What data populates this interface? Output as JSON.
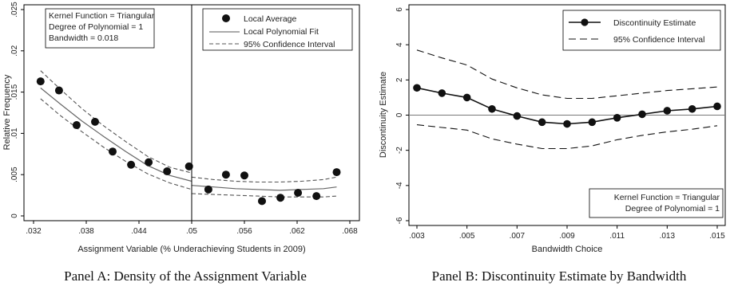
{
  "chart_data": [
    {
      "type": "scatter",
      "caption": "Panel A: Density of the Assignment Variable",
      "xlabel": "Assignment Variable (% Underachieving Students in 2009)",
      "ylabel": "Relative Frequency",
      "xlim": [
        0.032,
        0.068
      ],
      "ylim": [
        0,
        0.025
      ],
      "xticks": [
        0.032,
        0.038,
        0.044,
        0.05,
        0.056,
        0.062,
        0.068
      ],
      "xtick_labels": [
        ".032",
        ".038",
        ".044",
        ".05",
        ".056",
        ".062",
        ".068"
      ],
      "yticks": [
        0,
        0.005,
        0.01,
        0.015,
        0.02,
        0.025
      ],
      "ytick_labels": [
        "0",
        ".005",
        ".01",
        ".015",
        ".02",
        ".025"
      ],
      "cutoff": 0.05,
      "note": [
        "Kernel Function = Triangular",
        "Degree of Polynomial = 1",
        "Bandwidth = 0.018"
      ],
      "legend": {
        "position": "top-right",
        "entries": [
          "Local Average",
          "Local Polynomial Fit",
          "95% Confidence Interval"
        ]
      },
      "series": [
        {
          "name": "Local Average",
          "x": [
            0.0328,
            0.0349,
            0.0369,
            0.039,
            0.041,
            0.0431,
            0.0451,
            0.0472,
            0.0497,
            0.0519,
            0.0539,
            0.056,
            0.058,
            0.0601,
            0.0621,
            0.0642,
            0.0665
          ],
          "y": [
            0.0163,
            0.0152,
            0.011,
            0.0114,
            0.0078,
            0.0062,
            0.0065,
            0.0054,
            0.006,
            0.0032,
            0.005,
            0.0049,
            0.0018,
            0.0022,
            0.0028,
            0.0024,
            0.0053
          ]
        },
        {
          "name": "Local Polynomial Fit",
          "segments": [
            {
              "x": [
                0.0328,
                0.035,
                0.0375,
                0.04,
                0.0425,
                0.045,
                0.0475,
                0.05
              ],
              "y": [
                0.0155,
                0.0136,
                0.0115,
                0.0096,
                0.0078,
                0.0061,
                0.0049,
                0.0042
              ]
            },
            {
              "x": [
                0.05,
                0.0525,
                0.055,
                0.0575,
                0.06,
                0.0625,
                0.065,
                0.0665
              ],
              "y": [
                0.0037,
                0.0035,
                0.0033,
                0.0032,
                0.0031,
                0.0032,
                0.0033,
                0.0035
              ]
            }
          ]
        },
        {
          "name": "95% Confidence Interval",
          "segments": [
            {
              "x": [
                0.0328,
                0.035,
                0.0375,
                0.04,
                0.0425,
                0.045,
                0.0475,
                0.05
              ],
              "y": [
                0.0176,
                0.0154,
                0.013,
                0.0109,
                0.009,
                0.0072,
                0.0059,
                0.0052
              ]
            },
            {
              "x": [
                0.0328,
                0.035,
                0.0375,
                0.04,
                0.0425,
                0.045,
                0.0475,
                0.05
              ],
              "y": [
                0.0142,
                0.0122,
                0.0102,
                0.0083,
                0.0066,
                0.0051,
                0.004,
                0.0032
              ]
            },
            {
              "x": [
                0.05,
                0.0525,
                0.055,
                0.0575,
                0.06,
                0.0625,
                0.065,
                0.0665
              ],
              "y": [
                0.0047,
                0.0044,
                0.0042,
                0.0041,
                0.0041,
                0.0042,
                0.0044,
                0.0047
              ]
            },
            {
              "x": [
                0.05,
                0.0525,
                0.055,
                0.0575,
                0.06,
                0.0625,
                0.065,
                0.0665
              ],
              "y": [
                0.0027,
                0.0026,
                0.0025,
                0.0024,
                0.0023,
                0.0023,
                0.0023,
                0.0024
              ]
            }
          ]
        }
      ]
    },
    {
      "type": "line",
      "caption": "Panel B: Discontinuity Estimate by Bandwidth",
      "xlabel": "Bandwidth Choice",
      "ylabel": "Discontinuity Estimate",
      "xlim": [
        0.003,
        0.015
      ],
      "ylim": [
        -6,
        6
      ],
      "xticks": [
        0.003,
        0.005,
        0.007,
        0.009,
        0.011,
        0.013,
        0.015
      ],
      "xtick_labels": [
        ".003",
        ".005",
        ".007",
        ".009",
        ".011",
        ".013",
        ".015"
      ],
      "yticks": [
        -6,
        -4,
        -2,
        0,
        2,
        4,
        6
      ],
      "ytick_labels": [
        "-6",
        "-4",
        "-2",
        "0",
        "2",
        "4",
        "6"
      ],
      "zero_line": 0,
      "note": [
        "Kernel Function = Triangular",
        "Degree of Polynomial = 1"
      ],
      "legend": {
        "position": "top-right",
        "entries": [
          "Discontinuity Estimate",
          "95% Confidence Interval"
        ]
      },
      "series": [
        {
          "name": "Discontinuity Estimate",
          "x": [
            0.003,
            0.004,
            0.005,
            0.006,
            0.007,
            0.008,
            0.009,
            0.01,
            0.011,
            0.012,
            0.013,
            0.014,
            0.015
          ],
          "y": [
            1.55,
            1.25,
            1.0,
            0.35,
            -0.05,
            -0.4,
            -0.5,
            -0.4,
            -0.15,
            0.05,
            0.25,
            0.35,
            0.5
          ]
        },
        {
          "name": "95% Confidence Interval",
          "segments": [
            {
              "x": [
                0.003,
                0.004,
                0.005,
                0.006,
                0.007,
                0.008,
                0.009,
                0.01,
                0.011,
                0.012,
                0.013,
                0.014,
                0.015
              ],
              "y": [
                3.7,
                3.25,
                2.85,
                2.05,
                1.55,
                1.15,
                0.95,
                0.95,
                1.1,
                1.25,
                1.4,
                1.5,
                1.6
              ]
            },
            {
              "x": [
                0.003,
                0.004,
                0.005,
                0.006,
                0.007,
                0.008,
                0.009,
                0.01,
                0.011,
                0.012,
                0.013,
                0.014,
                0.015
              ],
              "y": [
                -0.55,
                -0.7,
                -0.85,
                -1.35,
                -1.65,
                -1.9,
                -1.9,
                -1.75,
                -1.4,
                -1.15,
                -0.95,
                -0.8,
                -0.6
              ]
            }
          ]
        }
      ]
    }
  ]
}
